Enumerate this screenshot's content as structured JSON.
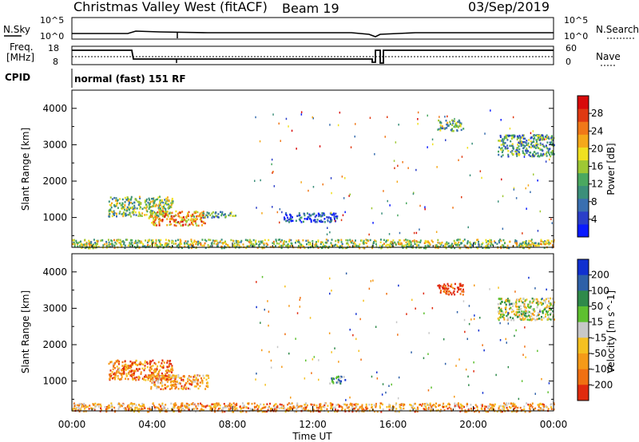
{
  "header": {
    "title": "Christmas Valley West (fitACF)",
    "beam": "Beam 19",
    "date": "03/Sep/2019"
  },
  "labels": {
    "nsky": "N.Sky",
    "nsearch": "N.Search",
    "freq_line1": "Freq.",
    "freq_line2": "[MHz]",
    "nave": "Nave",
    "cpid": "CPID",
    "cpid_value": "normal (fast) 151 RF"
  },
  "noise_axis": {
    "top": "10^5",
    "bottom": "10^0"
  },
  "freq_axis": {
    "left": [
      "18",
      "8"
    ],
    "right": [
      "60",
      "0"
    ]
  },
  "chart_data": [
    {
      "type": "heatmap",
      "name": "power-panel",
      "ylabel": "Slant Range [km]",
      "yticks": [
        1000,
        2000,
        3000,
        4000
      ],
      "ylim": [
        180,
        4500
      ],
      "xlim": [
        0,
        24
      ],
      "colorbar": {
        "label": "Power [dB]",
        "ticks": [
          "4",
          "8",
          "12",
          "16",
          "20",
          "24",
          "28"
        ],
        "colors": [
          "#0a1aff",
          "#2a3ec8",
          "#3a6fb0",
          "#3b8f7a",
          "#4aa860",
          "#9ec834",
          "#f0e020",
          "#f5a81a",
          "#f07818",
          "#e03a12",
          "#d80a0a"
        ]
      },
      "regions": [
        {
          "t0": 1.8,
          "t1": 5.0,
          "r0": 1050,
          "r1": 1600,
          "level": 0.45
        },
        {
          "t0": 3.8,
          "t1": 6.6,
          "r0": 800,
          "r1": 1200,
          "level": 0.7
        },
        {
          "t0": 6.5,
          "t1": 8.2,
          "r0": 1020,
          "r1": 1180,
          "level": 0.35
        },
        {
          "t0": 10.5,
          "t1": 13.2,
          "r0": 900,
          "r1": 1150,
          "level": 0.15
        },
        {
          "t0": 18.2,
          "t1": 19.5,
          "r0": 3400,
          "r1": 3700,
          "level": 0.4
        },
        {
          "t0": 21.2,
          "t1": 24.0,
          "r0": 2700,
          "r1": 3300,
          "level": 0.35
        },
        {
          "t0": 0.0,
          "t1": 24.0,
          "r0": 180,
          "r1": 420,
          "level": 0.5
        }
      ]
    },
    {
      "type": "heatmap",
      "name": "velocity-panel",
      "ylabel": "Slant Range [km]",
      "yticks": [
        1000,
        2000,
        3000,
        4000
      ],
      "ylim": [
        180,
        4500
      ],
      "xlim": [
        0,
        24
      ],
      "colorbar": {
        "label": "Velocity [m s^-1]",
        "ticks": [
          "200",
          "100",
          "50",
          "15",
          "-15",
          "-50",
          "-100",
          "-200"
        ],
        "colors": [
          "#1030d0",
          "#2e60a8",
          "#2f8a4a",
          "#5ec030",
          "#c8c8c8",
          "#f5c020",
          "#f59a18",
          "#f07012",
          "#e02a0e"
        ]
      },
      "regions": [
        {
          "t0": 1.8,
          "t1": 5.0,
          "r0": 1050,
          "r1": 1600,
          "level": 0.8
        },
        {
          "t0": 3.8,
          "t1": 6.8,
          "r0": 800,
          "r1": 1200,
          "level": 0.7
        },
        {
          "t0": 12.8,
          "t1": 13.6,
          "r0": 950,
          "r1": 1150,
          "level": 0.3
        },
        {
          "t0": 18.2,
          "t1": 19.5,
          "r0": 3400,
          "r1": 3700,
          "level": 0.95
        },
        {
          "t0": 21.2,
          "t1": 24.0,
          "r0": 2700,
          "r1": 3300,
          "level": 0.5
        },
        {
          "t0": 0.0,
          "t1": 24.0,
          "r0": 180,
          "r1": 420,
          "level": 0.7
        }
      ]
    }
  ],
  "xaxis": {
    "label": "Time UT",
    "ticks": [
      "00:00",
      "04:00",
      "08:00",
      "12:00",
      "16:00",
      "20:00",
      "00:00"
    ]
  }
}
